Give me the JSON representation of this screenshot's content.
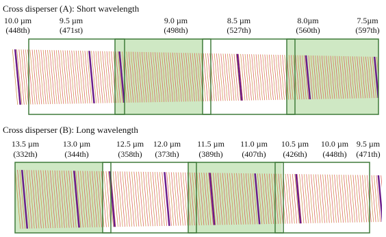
{
  "panels": [
    {
      "title": "Cross disperser (A): Short wavelength",
      "labels": [
        {
          "wavelength": "10.0 µm",
          "order": "(448th)"
        },
        {
          "wavelength": "9.5 µm",
          "order": "(471st)"
        },
        {
          "wavelength": "9.0 µm",
          "order": "(498th)"
        },
        {
          "wavelength": "8.5 µm",
          "order": "(527th)"
        },
        {
          "wavelength": "8.0µm",
          "order": "(560th)"
        },
        {
          "wavelength": "7.5µm",
          "order": "(597th)"
        }
      ]
    },
    {
      "title": "Cross disperser (B): Long wavelength",
      "labels": [
        {
          "wavelength": "13.5 µm",
          "order": "(332th)"
        },
        {
          "wavelength": "13.0 µm",
          "order": "(344th)"
        },
        {
          "wavelength": "12.5 µm",
          "order": "(358th)"
        },
        {
          "wavelength": "12.0 µm",
          "order": "(373th)"
        },
        {
          "wavelength": "11.5 µm",
          "order": "(389th)"
        },
        {
          "wavelength": "11.0 µm",
          "order": "(407th)"
        },
        {
          "wavelength": "10.5 µm",
          "order": "(426th)"
        },
        {
          "wavelength": "10.0 µm",
          "order": "(448th)"
        },
        {
          "wavelength": "9.5 µm",
          "order": "(471th)"
        }
      ]
    }
  ]
}
